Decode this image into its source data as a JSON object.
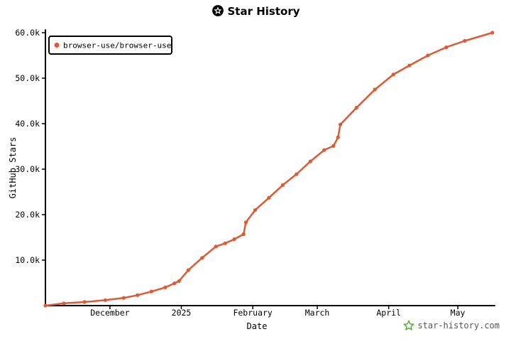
{
  "header": {
    "title": "Star History"
  },
  "watermark": {
    "text": "star-history.com",
    "icon": "star-icon",
    "icon_color": "#58a93a"
  },
  "colors": {
    "series": "#dd5a35",
    "axis": "#000000"
  },
  "chart_data": {
    "type": "line",
    "title": "Star History",
    "xlabel": "Date",
    "ylabel": "GitHub Stars",
    "ylim": [
      0,
      60000
    ],
    "grid": false,
    "legend_position": "top-left",
    "y_ticks": [
      {
        "value": 10000,
        "label": "10.0k"
      },
      {
        "value": 20000,
        "label": "20.0k"
      },
      {
        "value": 30000,
        "label": "30.0k"
      },
      {
        "value": 40000,
        "label": "40.0k"
      },
      {
        "value": 50000,
        "label": "50.0k"
      },
      {
        "value": 60000,
        "label": "60.0k"
      }
    ],
    "x_ticks": [
      {
        "date": "2024-12-01",
        "label": "December"
      },
      {
        "date": "2025-01-01",
        "label": "2025"
      },
      {
        "date": "2025-02-01",
        "label": "February"
      },
      {
        "date": "2025-03-01",
        "label": "March"
      },
      {
        "date": "2025-04-01",
        "label": "April"
      },
      {
        "date": "2025-05-01",
        "label": "May"
      }
    ],
    "xlim": [
      "2024-11-03",
      "2025-05-17"
    ],
    "series": [
      {
        "name": "browser-use/browser-use",
        "color": "#dd5a35",
        "points": [
          {
            "x": "2024-11-03",
            "y": 0
          },
          {
            "x": "2024-11-11",
            "y": 500
          },
          {
            "x": "2024-11-20",
            "y": 800
          },
          {
            "x": "2024-11-29",
            "y": 1200
          },
          {
            "x": "2024-12-07",
            "y": 1700
          },
          {
            "x": "2024-12-13",
            "y": 2300
          },
          {
            "x": "2024-12-19",
            "y": 3100
          },
          {
            "x": "2024-12-25",
            "y": 4000
          },
          {
            "x": "2024-12-29",
            "y": 4900
          },
          {
            "x": "2024-12-31",
            "y": 5400
          },
          {
            "x": "2025-01-04",
            "y": 7800
          },
          {
            "x": "2025-01-10",
            "y": 10500
          },
          {
            "x": "2025-01-16",
            "y": 13000
          },
          {
            "x": "2025-01-20",
            "y": 13700
          },
          {
            "x": "2025-01-24",
            "y": 14600
          },
          {
            "x": "2025-01-28",
            "y": 15700
          },
          {
            "x": "2025-01-29",
            "y": 18300
          },
          {
            "x": "2025-02-02",
            "y": 21000
          },
          {
            "x": "2025-02-08",
            "y": 23700
          },
          {
            "x": "2025-02-14",
            "y": 26500
          },
          {
            "x": "2025-02-20",
            "y": 28900
          },
          {
            "x": "2025-02-26",
            "y": 31700
          },
          {
            "x": "2025-03-04",
            "y": 34200
          },
          {
            "x": "2025-03-08",
            "y": 35100
          },
          {
            "x": "2025-03-10",
            "y": 37000
          },
          {
            "x": "2025-03-11",
            "y": 39800
          },
          {
            "x": "2025-03-18",
            "y": 43500
          },
          {
            "x": "2025-03-26",
            "y": 47500
          },
          {
            "x": "2025-04-03",
            "y": 50800
          },
          {
            "x": "2025-04-10",
            "y": 52800
          },
          {
            "x": "2025-04-18",
            "y": 55000
          },
          {
            "x": "2025-04-26",
            "y": 56800
          },
          {
            "x": "2025-05-04",
            "y": 58200
          },
          {
            "x": "2025-05-16",
            "y": 60000
          }
        ]
      }
    ]
  }
}
